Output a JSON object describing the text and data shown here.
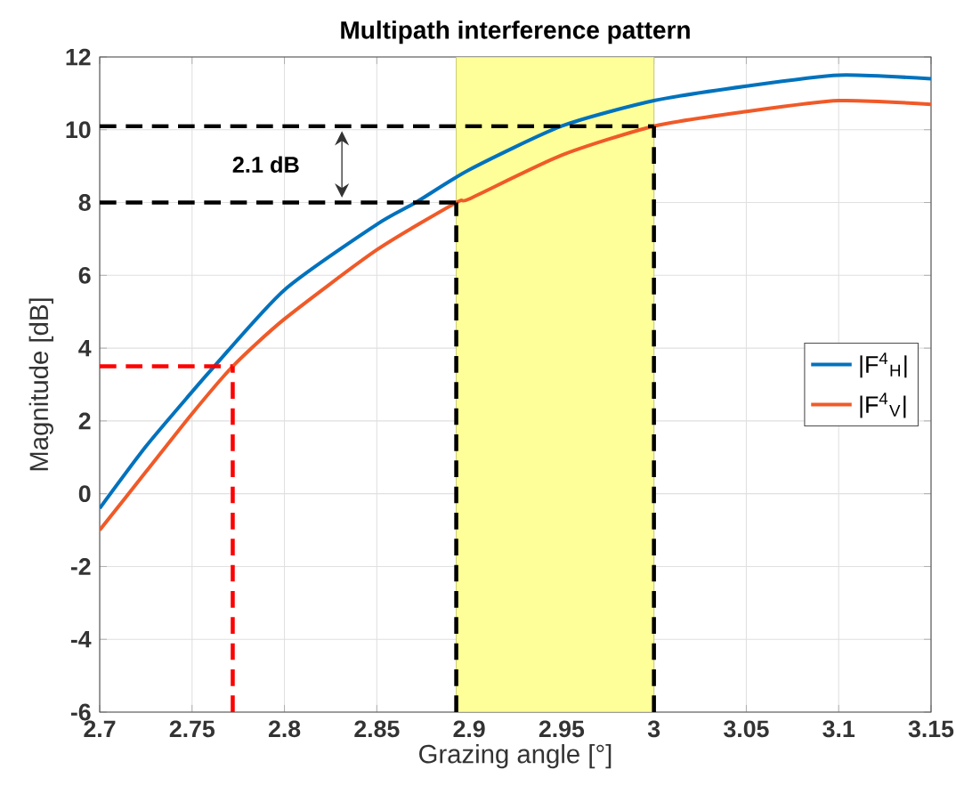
{
  "chart_data": {
    "type": "line",
    "title": "Multipath interference pattern",
    "xlabel": "Grazing angle [°]",
    "ylabel": "Magnitude [dB]",
    "xlim": [
      2.7,
      3.15
    ],
    "ylim": [
      -6,
      12
    ],
    "xticks": [
      2.7,
      2.75,
      2.8,
      2.85,
      2.9,
      2.95,
      3,
      3.05,
      3.1,
      3.15
    ],
    "yticks": [
      -6,
      -4,
      -2,
      0,
      2,
      4,
      6,
      8,
      10,
      12
    ],
    "grid": true,
    "legend": "right",
    "bands": [
      {
        "axis": "x",
        "from": 2.893,
        "to": 3.0,
        "color": "#ffff99"
      }
    ],
    "annotations": [
      "2.1 dB"
    ],
    "series": [
      {
        "name": "|F$^{4}$$_{H}$|",
        "color": "#0072bd",
        "x": [
          2.7,
          2.725,
          2.75,
          2.762,
          2.8,
          2.85,
          2.871,
          2.9,
          2.95,
          3.0,
          3.05,
          3.1,
          3.15
        ],
        "values": [
          -0.4,
          1.3,
          2.8,
          3.5,
          5.6,
          7.4,
          8.0,
          8.9,
          10.1,
          10.8,
          11.2,
          11.5,
          11.4
        ]
      },
      {
        "name": "|F$^{4}$$_{V}$|",
        "color": "#f05a28",
        "x": [
          2.7,
          2.725,
          2.75,
          2.772,
          2.8,
          2.85,
          2.893,
          2.9,
          2.95,
          3.0,
          3.05,
          3.1,
          3.15
        ],
        "values": [
          -1.0,
          0.6,
          2.2,
          3.5,
          4.8,
          6.7,
          8.0,
          8.1,
          9.3,
          10.1,
          10.5,
          10.8,
          10.7
        ]
      },
      {
        "color": "#000000",
        "line_style": "dashed",
        "x": [
          2.7,
          3.0
        ],
        "values": [
          10.1,
          10.1
        ]
      },
      {
        "color": "#000000",
        "line_style": "dashed",
        "x": [
          2.7,
          2.893
        ],
        "values": [
          8.0,
          8.0
        ]
      },
      {
        "color": "#000000",
        "line_style": "dashed",
        "x": [
          2.893,
          2.893
        ],
        "values": [
          -6,
          8.0
        ]
      },
      {
        "color": "#000000",
        "line_style": "dashed",
        "x": [
          3.0,
          3.0
        ],
        "values": [
          -6,
          10.1
        ]
      },
      {
        "color": "#ff0000",
        "line_style": "dashed",
        "x": [
          2.7,
          2.772
        ],
        "values": [
          3.5,
          3.5
        ]
      },
      {
        "color": "#ff0000",
        "line_style": "dashed",
        "x": [
          2.772,
          2.772
        ],
        "values": [
          -6,
          3.5
        ]
      }
    ]
  }
}
